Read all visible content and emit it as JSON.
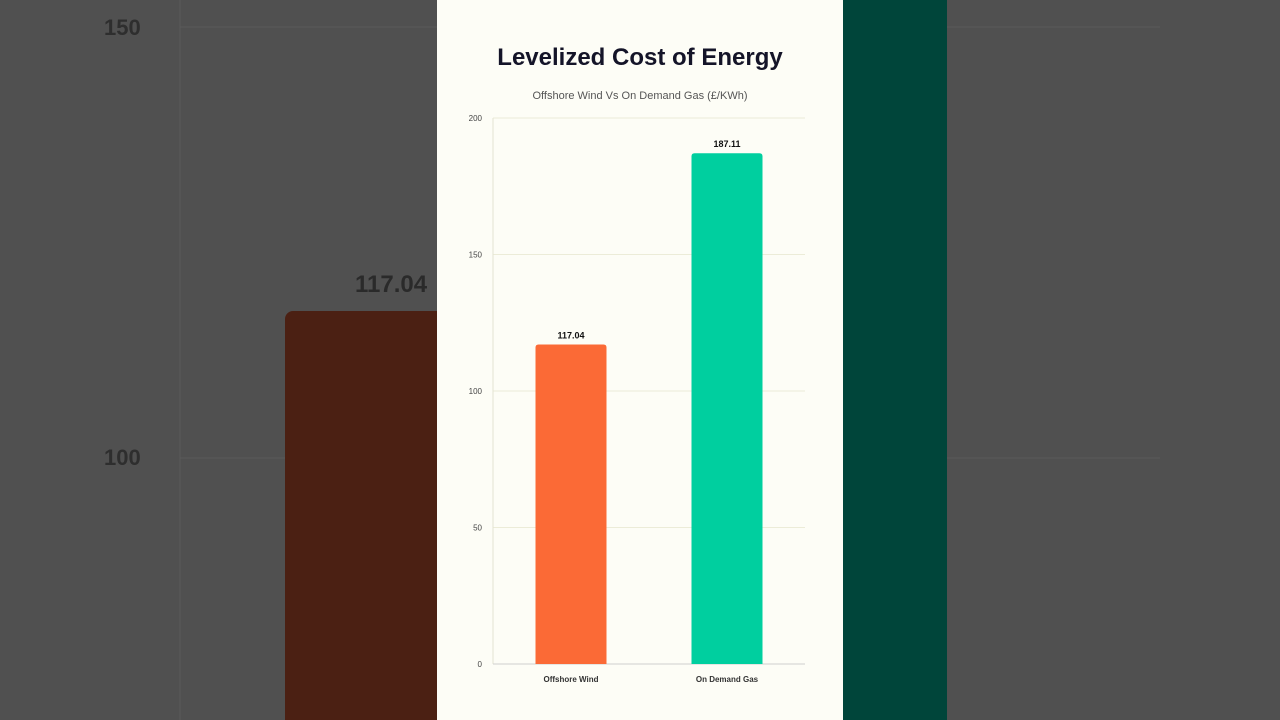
{
  "colors": {
    "background_overlay": "#505050",
    "card_background": "#fdfdf6",
    "offshore_wind": "#fb6a36",
    "on_demand_gas": "#00cf9f",
    "bg_offshore_wind": "#4b2013",
    "bg_on_demand_gas": "#00453a"
  },
  "background_chart": {
    "tick_labels": [
      "150",
      "100"
    ],
    "value_label": "117.04"
  },
  "chart_data": {
    "type": "bar",
    "title": "Levelized Cost of Energy",
    "subtitle": "Offshore Wind Vs On Demand Gas (£/KWh)",
    "categories": [
      "Offshore Wind",
      "On Demand Gas"
    ],
    "values": [
      117.04,
      187.11
    ],
    "value_labels": [
      "117.04",
      "187.11"
    ],
    "ylim": [
      0,
      200
    ],
    "yticks": [
      0,
      50,
      100,
      150,
      200
    ],
    "grid": true,
    "xlabel": "",
    "ylabel": ""
  }
}
